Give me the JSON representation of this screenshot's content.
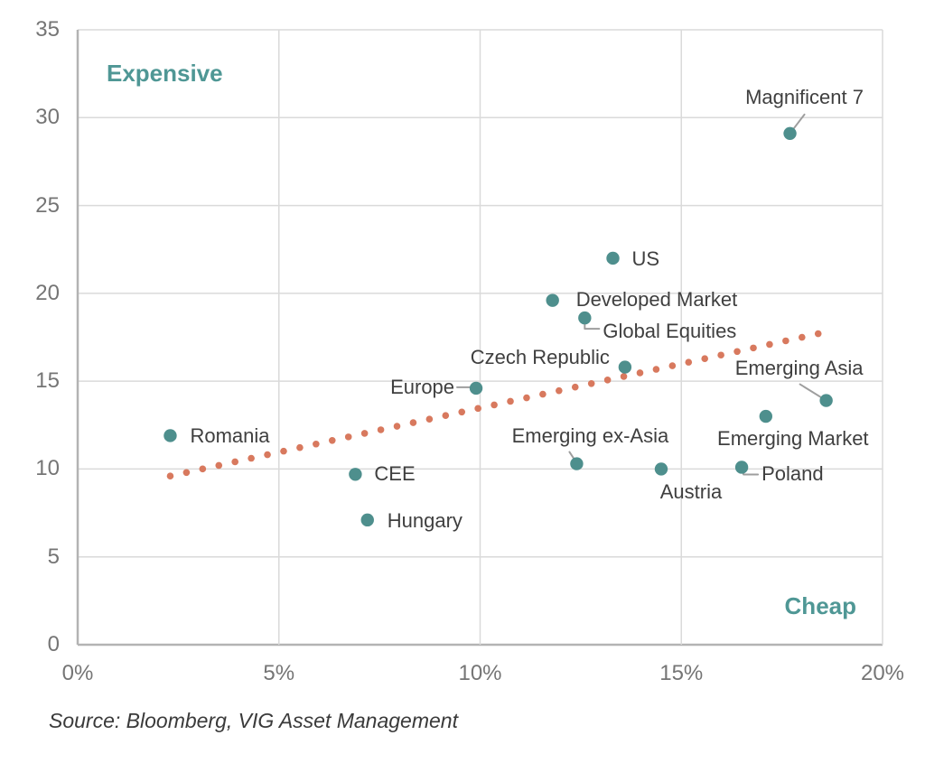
{
  "annotations": {
    "expensive": "Expensive",
    "cheap": "Cheap"
  },
  "source": "Source: Bloomberg, VIG Asset Management",
  "colors": {
    "point": "#4E8F8D",
    "trend": "#D8795E",
    "annotation_text": "#4F9795",
    "label_text": "#3F3F3F",
    "tick_text": "#757575",
    "grid": "#DADADA",
    "axis": "#B3B3B3",
    "connector": "#9E9E9E"
  },
  "chart_data": {
    "type": "scatter",
    "xlim": [
      0,
      20
    ],
    "ylim": [
      0,
      35
    ],
    "x_ticks": [
      0,
      5,
      10,
      15,
      20
    ],
    "x_tick_labels": [
      "0%",
      "5%",
      "10%",
      "15%",
      "20%"
    ],
    "y_ticks": [
      0,
      5,
      10,
      15,
      20,
      25,
      30,
      35
    ],
    "y_tick_labels": [
      "0",
      "5",
      "10",
      "15",
      "20",
      "25",
      "30",
      "35"
    ],
    "grid": true,
    "legend": "none",
    "quadrant_labels": {
      "top_left": "Expensive",
      "bottom_right": "Cheap"
    },
    "points": [
      {
        "label": "Magnificent 7",
        "x": 17.7,
        "y": 29.1,
        "label_anchor": "center",
        "label_offset": [
          16,
          -40
        ],
        "connector": [
          [
            16,
            -21
          ],
          [
            0,
            0
          ]
        ]
      },
      {
        "label": "US",
        "x": 13.3,
        "y": 22.0,
        "label_anchor": "left",
        "label_offset": [
          21,
          1
        ],
        "connector": null
      },
      {
        "label": "Developed Market",
        "x": 11.8,
        "y": 19.6,
        "label_anchor": "left",
        "label_offset": [
          26,
          -1
        ],
        "connector": null
      },
      {
        "label": "Global Equities",
        "x": 12.6,
        "y": 18.6,
        "label_anchor": "left",
        "label_offset": [
          20,
          15
        ],
        "connector": [
          [
            0,
            2
          ],
          [
            0,
            12
          ],
          [
            16,
            12
          ]
        ]
      },
      {
        "label": "Czech Republic",
        "x": 13.6,
        "y": 15.8,
        "label_anchor": "right",
        "label_offset": [
          -17,
          -11
        ],
        "connector": null
      },
      {
        "label": "Europe",
        "x": 9.9,
        "y": 14.6,
        "label_anchor": "right",
        "label_offset": [
          -24,
          -1
        ],
        "connector": [
          [
            -21,
            -1
          ],
          [
            -5,
            -1
          ]
        ]
      },
      {
        "label": "Emerging Asia",
        "x": 18.6,
        "y": 13.9,
        "label_anchor": "center",
        "label_offset": [
          -30,
          -36
        ],
        "connector": [
          [
            -29,
            -18
          ],
          [
            0,
            0
          ]
        ]
      },
      {
        "label": "Emerging Market",
        "x": 17.1,
        "y": 13.0,
        "label_anchor": "center",
        "label_offset": [
          30,
          25
        ],
        "connector": null
      },
      {
        "label": "Romania",
        "x": 2.3,
        "y": 11.9,
        "label_anchor": "left",
        "label_offset": [
          22,
          1
        ],
        "connector": null
      },
      {
        "label": "Emerging ex-Asia",
        "x": 12.4,
        "y": 10.3,
        "label_anchor": "center",
        "label_offset": [
          15,
          -31
        ],
        "connector": [
          [
            -8,
            -13
          ],
          [
            0,
            -1
          ]
        ]
      },
      {
        "label": "Austria",
        "x": 14.5,
        "y": 10.0,
        "label_anchor": "center",
        "label_offset": [
          33,
          26
        ],
        "connector": null
      },
      {
        "label": "Poland",
        "x": 16.5,
        "y": 10.1,
        "label_anchor": "left",
        "label_offset": [
          22,
          8
        ],
        "connector": [
          [
            0,
            2
          ],
          [
            2,
            8
          ],
          [
            18,
            8
          ]
        ]
      },
      {
        "label": "CEE",
        "x": 6.9,
        "y": 9.7,
        "label_anchor": "left",
        "label_offset": [
          21,
          0
        ],
        "connector": null
      },
      {
        "label": "Hungary",
        "x": 7.2,
        "y": 7.1,
        "label_anchor": "left",
        "label_offset": [
          22,
          1
        ],
        "connector": null
      }
    ],
    "trend": {
      "style": "dotted",
      "start": [
        2.3,
        9.6
      ],
      "end": [
        18.4,
        17.7
      ],
      "dot_count": 41
    }
  }
}
